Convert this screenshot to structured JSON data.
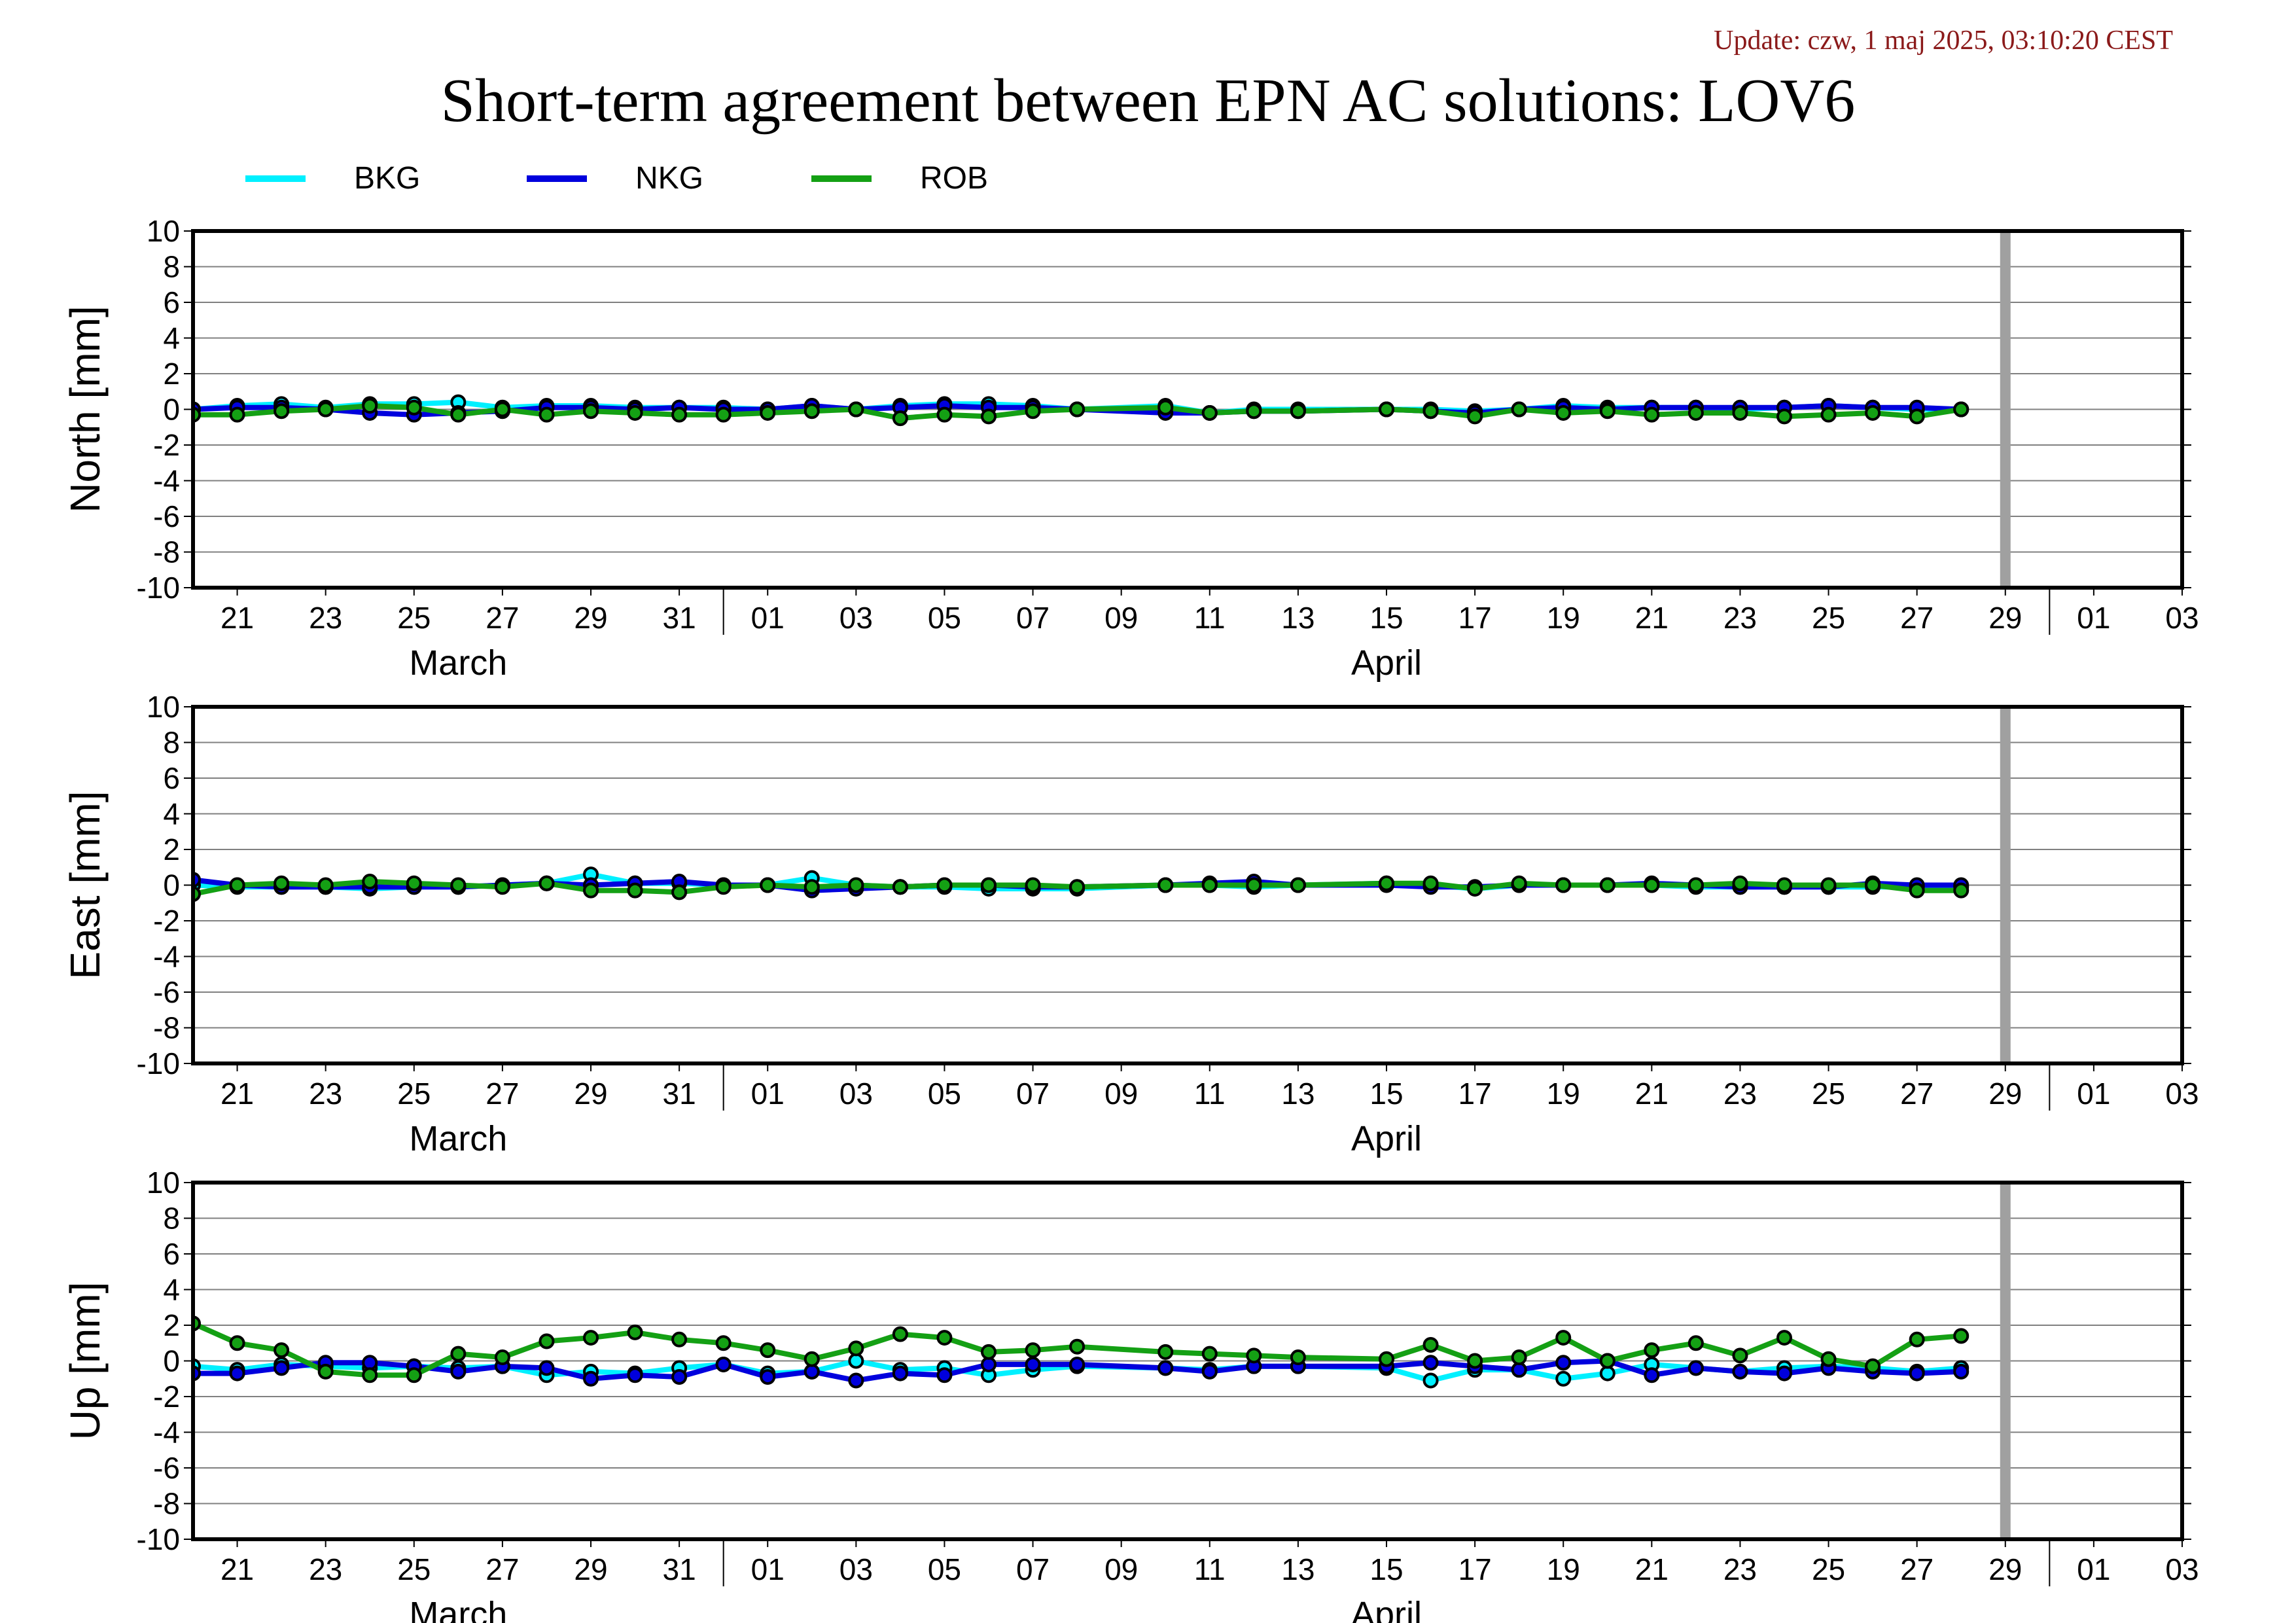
{
  "header": {
    "update": "Update: czw, 1 maj 2025, 03:10:20 CEST",
    "title": "Short-term agreement between EPN AC solutions: LOV6"
  },
  "colors": {
    "BKG": "#00f0ff",
    "NKG": "#0000dd",
    "ROB": "#14a014",
    "gap_marker": "#a0a0a0",
    "grid": "#808080"
  },
  "chart_data": [
    {
      "type": "line",
      "ylabel": "North [mm]",
      "ylim": [
        -10,
        10
      ],
      "yticks": [
        10,
        8,
        6,
        4,
        2,
        0,
        -2,
        -4,
        -6,
        -8,
        -10
      ],
      "xlim": [
        "2025-03-20",
        "2025-05-04"
      ],
      "x_tick_labels": [
        "21",
        "23",
        "25",
        "27",
        "29",
        "31",
        "01",
        "03",
        "05",
        "07",
        "09",
        "11",
        "13",
        "15",
        "17",
        "19",
        "21",
        "23",
        "25",
        "27",
        "29",
        "01",
        "03"
      ],
      "month_labels": [
        "March",
        "April"
      ],
      "grid": true,
      "legend": "top-left",
      "series": [
        {
          "name": "BKG",
          "x": [
            "2025-03-20",
            "2025-03-21",
            "2025-03-22",
            "2025-03-23",
            "2025-03-24",
            "2025-03-25",
            "2025-03-26",
            "2025-03-27",
            "2025-03-28",
            "2025-03-29",
            "2025-03-30",
            "2025-03-31",
            "2025-04-01",
            "2025-04-02",
            "2025-04-03",
            "2025-04-04",
            "2025-04-05",
            "2025-04-06",
            "2025-04-07",
            "2025-04-08",
            "2025-04-09",
            "2025-04-11",
            "2025-04-12",
            "2025-04-13",
            "2025-04-14",
            "2025-04-16",
            "2025-04-17",
            "2025-04-18",
            "2025-04-19",
            "2025-04-20",
            "2025-04-21",
            "2025-04-22",
            "2025-04-23",
            "2025-04-24",
            "2025-04-25",
            "2025-04-26",
            "2025-04-27",
            "2025-04-28",
            "2025-04-29"
          ],
          "values": [
            0.0,
            0.2,
            0.3,
            0.1,
            0.3,
            0.3,
            0.4,
            0.1,
            0.2,
            0.2,
            0.1,
            0.1,
            0.1,
            0.0,
            0.2,
            0.0,
            0.2,
            0.3,
            0.3,
            0.2,
            0.0,
            0.2,
            -0.2,
            0.0,
            0.0,
            0.0,
            0.0,
            -0.1,
            0.0,
            0.2,
            0.1,
            0.1,
            0.1,
            0.0,
            0.1,
            0.2,
            0.1,
            0.0,
            0.0
          ]
        },
        {
          "name": "NKG",
          "x": [
            "2025-03-20",
            "2025-03-21",
            "2025-03-22",
            "2025-03-23",
            "2025-03-24",
            "2025-03-25",
            "2025-03-26",
            "2025-03-27",
            "2025-03-28",
            "2025-03-29",
            "2025-03-30",
            "2025-03-31",
            "2025-04-01",
            "2025-04-02",
            "2025-04-03",
            "2025-04-04",
            "2025-04-05",
            "2025-04-06",
            "2025-04-07",
            "2025-04-08",
            "2025-04-09",
            "2025-04-11",
            "2025-04-12",
            "2025-04-13",
            "2025-04-14",
            "2025-04-16",
            "2025-04-17",
            "2025-04-18",
            "2025-04-19",
            "2025-04-20",
            "2025-04-21",
            "2025-04-22",
            "2025-04-23",
            "2025-04-24",
            "2025-04-25",
            "2025-04-26",
            "2025-04-27",
            "2025-04-28",
            "2025-04-29"
          ],
          "values": [
            0.0,
            0.1,
            0.1,
            0.0,
            -0.2,
            -0.3,
            -0.2,
            -0.1,
            0.1,
            0.1,
            0.0,
            0.1,
            0.0,
            0.0,
            0.2,
            0.0,
            0.1,
            0.2,
            0.1,
            0.1,
            0.0,
            -0.2,
            -0.2,
            -0.1,
            -0.1,
            0.0,
            -0.1,
            -0.2,
            0.0,
            0.1,
            0.0,
            0.1,
            0.1,
            0.1,
            0.1,
            0.2,
            0.1,
            0.1,
            0.0
          ]
        },
        {
          "name": "ROB",
          "x": [
            "2025-03-20",
            "2025-03-21",
            "2025-03-22",
            "2025-03-23",
            "2025-03-24",
            "2025-03-25",
            "2025-03-26",
            "2025-03-27",
            "2025-03-28",
            "2025-03-29",
            "2025-03-30",
            "2025-03-31",
            "2025-04-01",
            "2025-04-02",
            "2025-04-03",
            "2025-04-04",
            "2025-04-05",
            "2025-04-06",
            "2025-04-07",
            "2025-04-08",
            "2025-04-09",
            "2025-04-11",
            "2025-04-12",
            "2025-04-13",
            "2025-04-14",
            "2025-04-16",
            "2025-04-17",
            "2025-04-18",
            "2025-04-19",
            "2025-04-20",
            "2025-04-21",
            "2025-04-22",
            "2025-04-23",
            "2025-04-24",
            "2025-04-25",
            "2025-04-26",
            "2025-04-27",
            "2025-04-28",
            "2025-04-29"
          ],
          "values": [
            -0.3,
            -0.3,
            -0.1,
            0.0,
            0.2,
            0.1,
            -0.3,
            0.0,
            -0.3,
            -0.1,
            -0.2,
            -0.3,
            -0.3,
            -0.2,
            -0.1,
            0.0,
            -0.5,
            -0.3,
            -0.4,
            -0.1,
            0.0,
            0.1,
            -0.2,
            -0.1,
            -0.1,
            0.0,
            -0.1,
            -0.4,
            0.0,
            -0.2,
            -0.1,
            -0.3,
            -0.2,
            -0.2,
            -0.4,
            -0.3,
            -0.2,
            -0.4,
            0.0
          ]
        }
      ]
    },
    {
      "type": "line",
      "ylabel": "East [mm]",
      "ylim": [
        -10,
        10
      ],
      "yticks": [
        10,
        8,
        6,
        4,
        2,
        0,
        -2,
        -4,
        -6,
        -8,
        -10
      ],
      "xlim": [
        "2025-03-20",
        "2025-05-04"
      ],
      "x_tick_labels": [
        "21",
        "23",
        "25",
        "27",
        "29",
        "31",
        "01",
        "03",
        "05",
        "07",
        "09",
        "11",
        "13",
        "15",
        "17",
        "19",
        "21",
        "23",
        "25",
        "27",
        "29",
        "01",
        "03"
      ],
      "month_labels": [
        "March",
        "April"
      ],
      "grid": true,
      "series": [
        {
          "name": "BKG",
          "x": [
            "2025-03-20",
            "2025-03-21",
            "2025-03-22",
            "2025-03-23",
            "2025-03-24",
            "2025-03-25",
            "2025-03-26",
            "2025-03-27",
            "2025-03-28",
            "2025-03-29",
            "2025-03-30",
            "2025-03-31",
            "2025-04-01",
            "2025-04-02",
            "2025-04-03",
            "2025-04-04",
            "2025-04-05",
            "2025-04-06",
            "2025-04-07",
            "2025-04-08",
            "2025-04-09",
            "2025-04-11",
            "2025-04-12",
            "2025-04-13",
            "2025-04-14",
            "2025-04-16",
            "2025-04-17",
            "2025-04-18",
            "2025-04-19",
            "2025-04-20",
            "2025-04-21",
            "2025-04-22",
            "2025-04-23",
            "2025-04-24",
            "2025-04-25",
            "2025-04-26",
            "2025-04-27",
            "2025-04-28",
            "2025-04-29"
          ],
          "values": [
            0.0,
            -0.1,
            -0.1,
            -0.1,
            -0.2,
            -0.1,
            -0.1,
            0.0,
            0.1,
            0.6,
            0.1,
            0.1,
            0.0,
            0.0,
            0.4,
            0.0,
            -0.1,
            -0.1,
            -0.2,
            -0.2,
            -0.2,
            0.0,
            0.0,
            -0.1,
            0.0,
            0.1,
            0.0,
            -0.2,
            0.0,
            0.0,
            0.0,
            0.0,
            -0.1,
            -0.1,
            -0.1,
            -0.1,
            -0.1,
            -0.1,
            -0.1
          ]
        },
        {
          "name": "NKG",
          "x": [
            "2025-03-20",
            "2025-03-21",
            "2025-03-22",
            "2025-03-23",
            "2025-03-24",
            "2025-03-25",
            "2025-03-26",
            "2025-03-27",
            "2025-03-28",
            "2025-03-29",
            "2025-03-30",
            "2025-03-31",
            "2025-04-01",
            "2025-04-02",
            "2025-04-03",
            "2025-04-04",
            "2025-04-05",
            "2025-04-06",
            "2025-04-07",
            "2025-04-08",
            "2025-04-09",
            "2025-04-11",
            "2025-04-12",
            "2025-04-13",
            "2025-04-14",
            "2025-04-16",
            "2025-04-17",
            "2025-04-18",
            "2025-04-19",
            "2025-04-20",
            "2025-04-21",
            "2025-04-22",
            "2025-04-23",
            "2025-04-24",
            "2025-04-25",
            "2025-04-26",
            "2025-04-27",
            "2025-04-28",
            "2025-04-29"
          ],
          "values": [
            0.3,
            0.0,
            -0.1,
            -0.1,
            -0.1,
            -0.1,
            -0.1,
            0.0,
            0.1,
            0.0,
            0.1,
            0.2,
            0.0,
            0.0,
            -0.3,
            -0.2,
            -0.1,
            0.0,
            0.0,
            -0.1,
            -0.1,
            0.0,
            0.1,
            0.2,
            0.0,
            0.0,
            -0.1,
            -0.1,
            0.0,
            0.0,
            0.0,
            0.1,
            0.0,
            -0.1,
            -0.1,
            -0.1,
            0.1,
            0.0,
            0.0
          ]
        },
        {
          "name": "ROB",
          "x": [
            "2025-03-20",
            "2025-03-21",
            "2025-03-22",
            "2025-03-23",
            "2025-03-24",
            "2025-03-25",
            "2025-03-26",
            "2025-03-27",
            "2025-03-28",
            "2025-03-29",
            "2025-03-30",
            "2025-03-31",
            "2025-04-01",
            "2025-04-02",
            "2025-04-03",
            "2025-04-04",
            "2025-04-05",
            "2025-04-06",
            "2025-04-07",
            "2025-04-08",
            "2025-04-09",
            "2025-04-11",
            "2025-04-12",
            "2025-04-13",
            "2025-04-14",
            "2025-04-16",
            "2025-04-17",
            "2025-04-18",
            "2025-04-19",
            "2025-04-20",
            "2025-04-21",
            "2025-04-22",
            "2025-04-23",
            "2025-04-24",
            "2025-04-25",
            "2025-04-26",
            "2025-04-27",
            "2025-04-28",
            "2025-04-29"
          ],
          "values": [
            -0.5,
            0.0,
            0.1,
            0.0,
            0.2,
            0.1,
            0.0,
            -0.1,
            0.1,
            -0.3,
            -0.3,
            -0.4,
            -0.1,
            0.0,
            -0.1,
            0.0,
            -0.1,
            0.0,
            0.0,
            0.0,
            -0.1,
            0.0,
            0.0,
            0.0,
            0.0,
            0.1,
            0.1,
            -0.2,
            0.1,
            0.0,
            0.0,
            0.0,
            0.0,
            0.1,
            0.0,
            0.0,
            0.0,
            -0.3,
            -0.3
          ]
        }
      ]
    },
    {
      "type": "line",
      "ylabel": "Up [mm]",
      "ylim": [
        -10,
        10
      ],
      "yticks": [
        10,
        8,
        6,
        4,
        2,
        0,
        -2,
        -4,
        -6,
        -8,
        -10
      ],
      "xlim": [
        "2025-03-20",
        "2025-05-04"
      ],
      "x_tick_labels": [
        "21",
        "23",
        "25",
        "27",
        "29",
        "31",
        "01",
        "03",
        "05",
        "07",
        "09",
        "11",
        "13",
        "15",
        "17",
        "19",
        "21",
        "23",
        "25",
        "27",
        "29",
        "01",
        "03"
      ],
      "month_labels": [
        "March",
        "April"
      ],
      "grid": true,
      "series": [
        {
          "name": "BKG",
          "x": [
            "2025-03-20",
            "2025-03-21",
            "2025-03-22",
            "2025-03-23",
            "2025-03-24",
            "2025-03-25",
            "2025-03-26",
            "2025-03-27",
            "2025-03-28",
            "2025-03-29",
            "2025-03-30",
            "2025-03-31",
            "2025-04-01",
            "2025-04-02",
            "2025-04-03",
            "2025-04-04",
            "2025-04-05",
            "2025-04-06",
            "2025-04-07",
            "2025-04-08",
            "2025-04-09",
            "2025-04-11",
            "2025-04-12",
            "2025-04-13",
            "2025-04-14",
            "2025-04-16",
            "2025-04-17",
            "2025-04-18",
            "2025-04-19",
            "2025-04-20",
            "2025-04-21",
            "2025-04-22",
            "2025-04-23",
            "2025-04-24",
            "2025-04-25",
            "2025-04-26",
            "2025-04-27",
            "2025-04-28",
            "2025-04-29"
          ],
          "values": [
            -0.3,
            -0.5,
            -0.2,
            -0.3,
            -0.4,
            -0.3,
            -0.4,
            -0.3,
            -0.8,
            -0.6,
            -0.7,
            -0.4,
            -0.2,
            -0.7,
            -0.6,
            0.0,
            -0.5,
            -0.4,
            -0.8,
            -0.5,
            -0.3,
            -0.4,
            -0.5,
            -0.3,
            -0.3,
            -0.4,
            -1.1,
            -0.5,
            -0.5,
            -1.0,
            -0.7,
            -0.2,
            -0.4,
            -0.6,
            -0.4,
            -0.3,
            -0.4,
            -0.6,
            -0.4
          ]
        },
        {
          "name": "NKG",
          "x": [
            "2025-03-20",
            "2025-03-21",
            "2025-03-22",
            "2025-03-23",
            "2025-03-24",
            "2025-03-25",
            "2025-03-26",
            "2025-03-27",
            "2025-03-28",
            "2025-03-29",
            "2025-03-30",
            "2025-03-31",
            "2025-04-01",
            "2025-04-02",
            "2025-04-03",
            "2025-04-04",
            "2025-04-05",
            "2025-04-06",
            "2025-04-07",
            "2025-04-08",
            "2025-04-09",
            "2025-04-11",
            "2025-04-12",
            "2025-04-13",
            "2025-04-14",
            "2025-04-16",
            "2025-04-17",
            "2025-04-18",
            "2025-04-19",
            "2025-04-20",
            "2025-04-21",
            "2025-04-22",
            "2025-04-23",
            "2025-04-24",
            "2025-04-25",
            "2025-04-26",
            "2025-04-27",
            "2025-04-28",
            "2025-04-29"
          ],
          "values": [
            -0.7,
            -0.7,
            -0.4,
            -0.1,
            -0.1,
            -0.3,
            -0.6,
            -0.3,
            -0.4,
            -1.0,
            -0.8,
            -0.9,
            -0.2,
            -0.9,
            -0.6,
            -1.1,
            -0.7,
            -0.8,
            -0.2,
            -0.2,
            -0.2,
            -0.4,
            -0.6,
            -0.3,
            -0.3,
            -0.3,
            -0.1,
            -0.3,
            -0.5,
            -0.1,
            0.0,
            -0.8,
            -0.4,
            -0.6,
            -0.7,
            -0.4,
            -0.6,
            -0.7,
            -0.6
          ]
        },
        {
          "name": "ROB",
          "x": [
            "2025-03-20",
            "2025-03-21",
            "2025-03-22",
            "2025-03-23",
            "2025-03-24",
            "2025-03-25",
            "2025-03-26",
            "2025-03-27",
            "2025-03-28",
            "2025-03-29",
            "2025-03-30",
            "2025-03-31",
            "2025-04-01",
            "2025-04-02",
            "2025-04-03",
            "2025-04-04",
            "2025-04-05",
            "2025-04-06",
            "2025-04-07",
            "2025-04-08",
            "2025-04-09",
            "2025-04-11",
            "2025-04-12",
            "2025-04-13",
            "2025-04-14",
            "2025-04-16",
            "2025-04-17",
            "2025-04-18",
            "2025-04-19",
            "2025-04-20",
            "2025-04-21",
            "2025-04-22",
            "2025-04-23",
            "2025-04-24",
            "2025-04-25",
            "2025-04-26",
            "2025-04-27",
            "2025-04-28",
            "2025-04-29"
          ],
          "values": [
            2.1,
            1.0,
            0.6,
            -0.6,
            -0.8,
            -0.8,
            0.4,
            0.2,
            1.1,
            1.3,
            1.6,
            1.2,
            1.0,
            0.6,
            0.1,
            0.7,
            1.5,
            1.3,
            0.5,
            0.6,
            0.8,
            0.5,
            0.4,
            0.3,
            0.2,
            0.1,
            0.9,
            0.0,
            0.2,
            1.3,
            0.0,
            0.6,
            1.0,
            0.3,
            1.3,
            0.1,
            -0.3,
            1.2,
            1.4
          ]
        }
      ]
    }
  ]
}
